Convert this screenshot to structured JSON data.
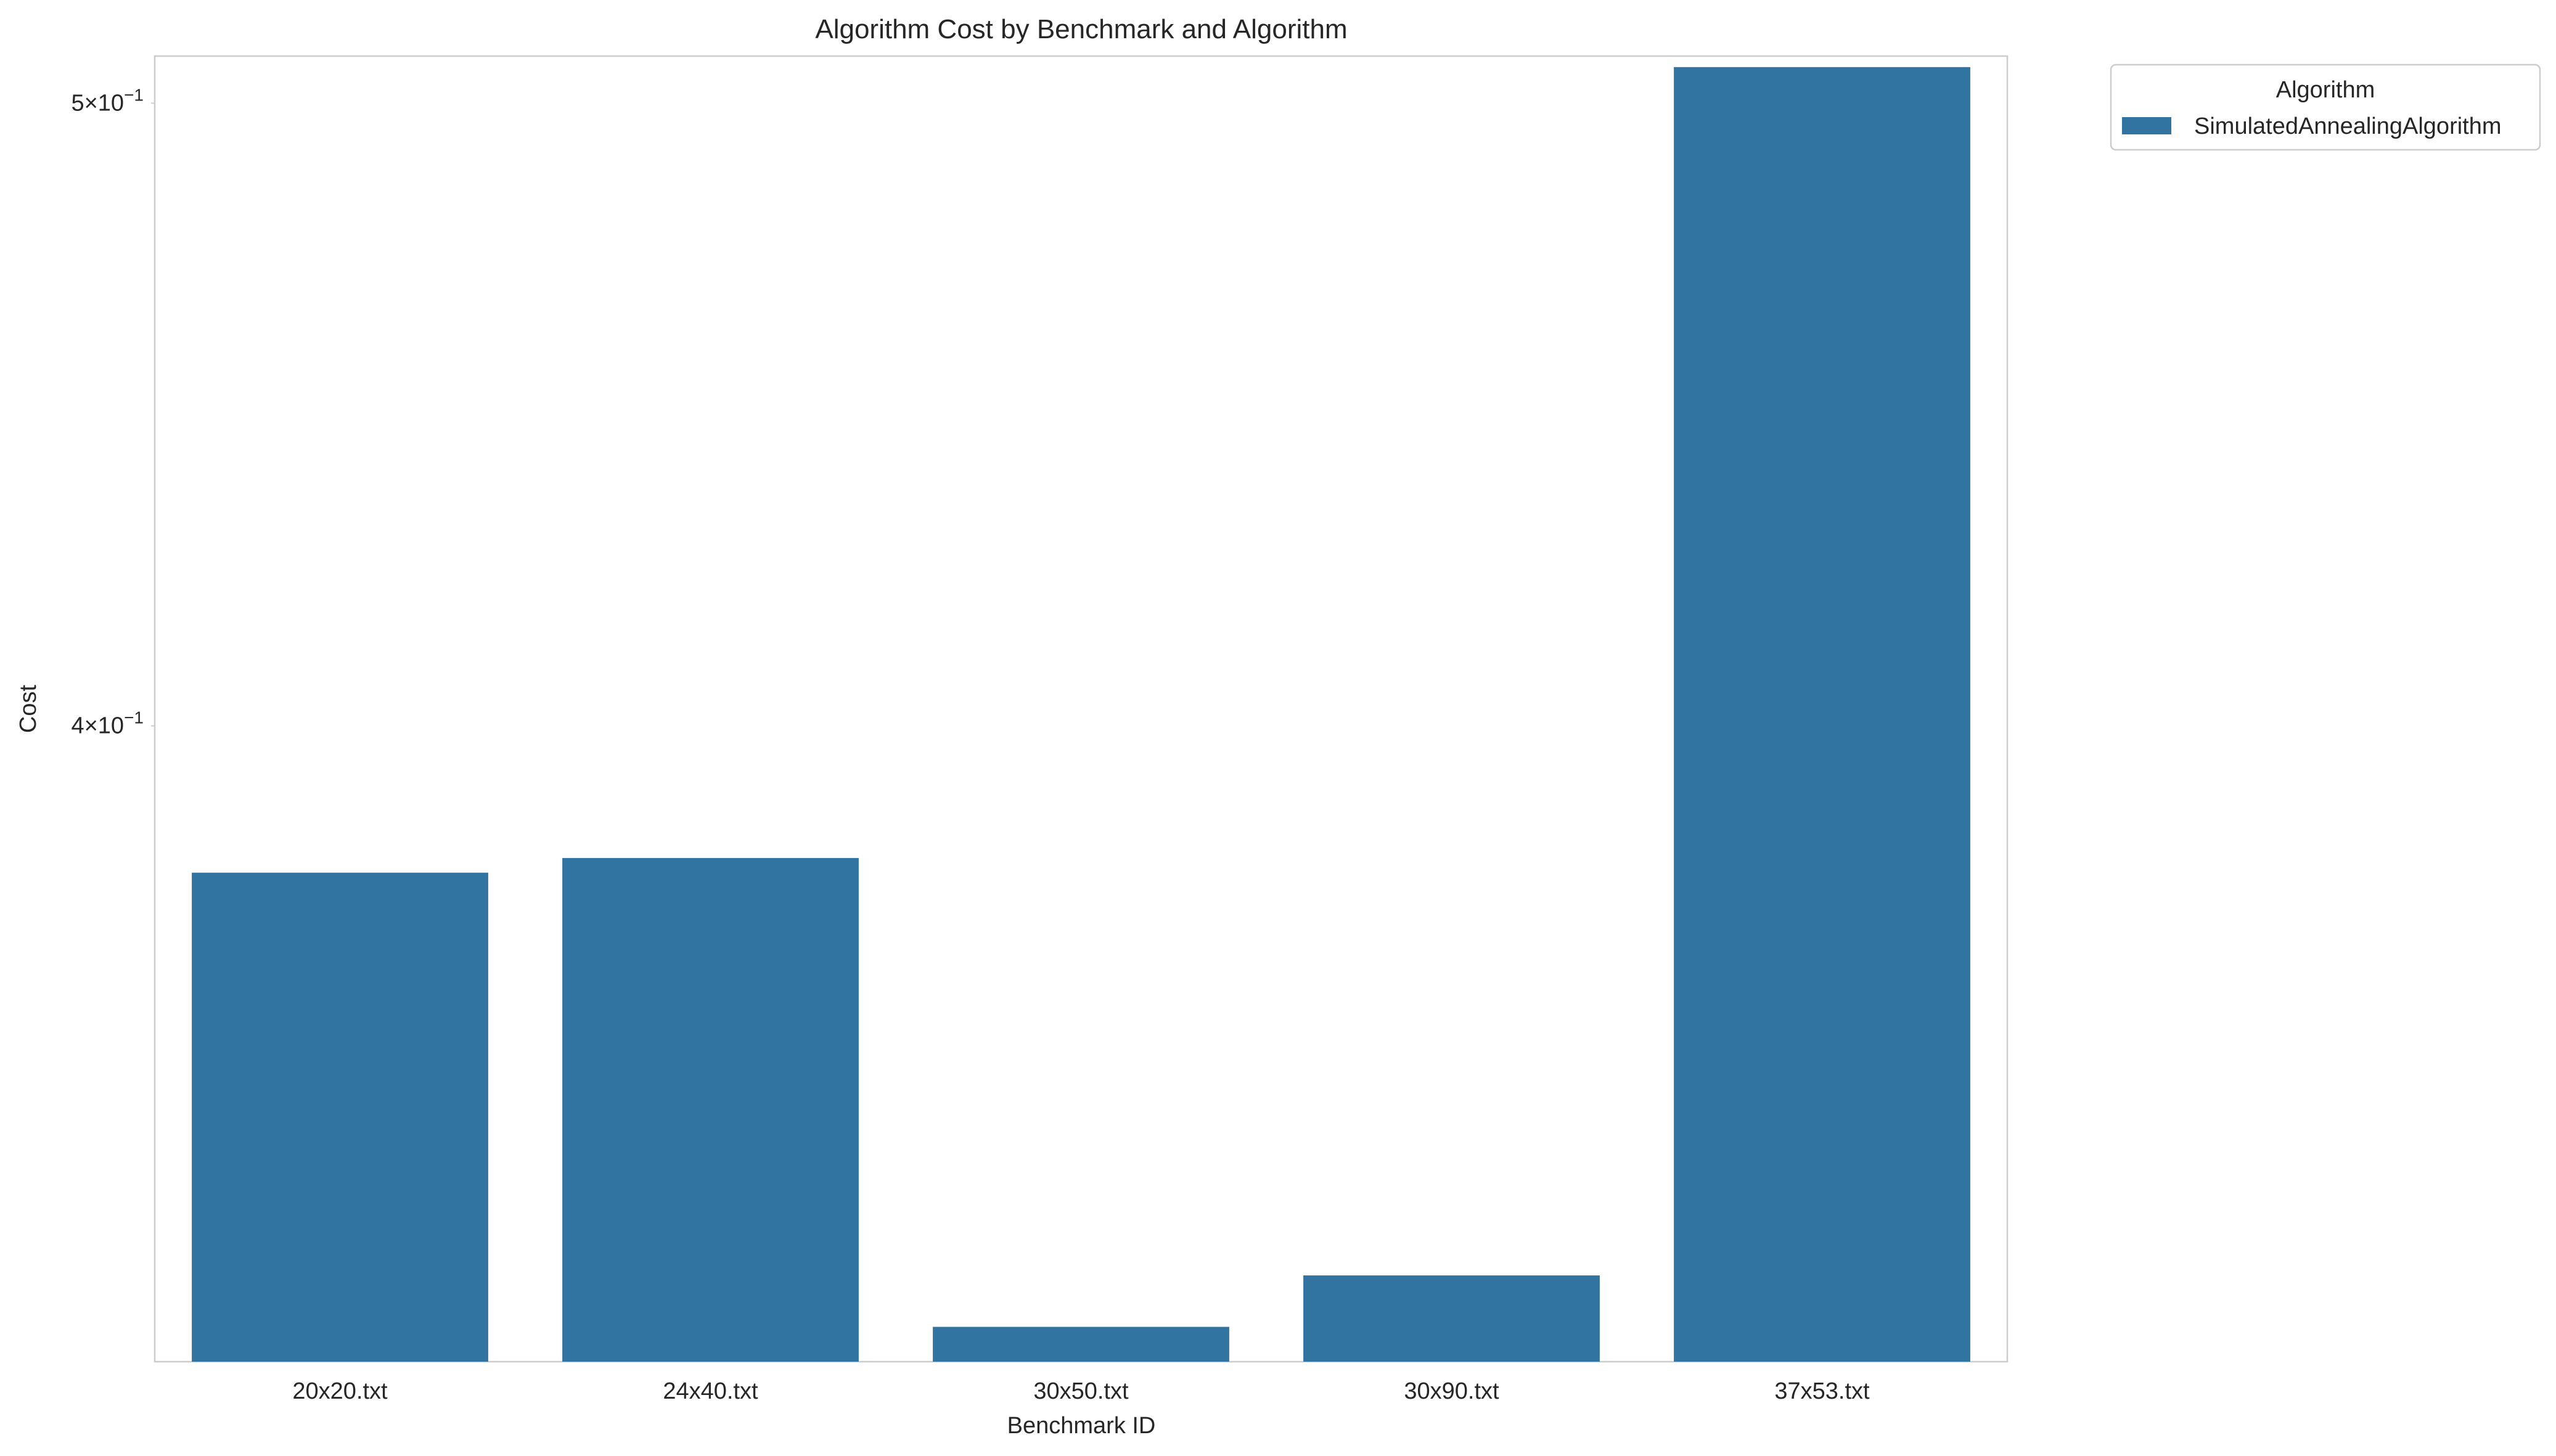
{
  "chart_data": {
    "type": "bar",
    "title": "Algorithm Cost by Benchmark and Algorithm",
    "xlabel": "Benchmark ID",
    "ylabel": "Cost",
    "yscale": "log",
    "ylim": [
      0.3185,
      0.5085
    ],
    "y_ticks": [
      {
        "value": 0.5,
        "base": "5",
        "exponent": "−1"
      },
      {
        "value": 0.4,
        "base": "4",
        "exponent": "−1"
      }
    ],
    "categories": [
      "20x20.txt",
      "24x40.txt",
      "30x50.txt",
      "30x90.txt",
      "37x53.txt"
    ],
    "series": [
      {
        "name": "SimulatedAnnealingAlgorithm",
        "values": [
          0.3795,
          0.3815,
          0.3225,
          0.3285,
          0.5065
        ]
      }
    ],
    "legend": {
      "title": "Algorithm",
      "placement": "outside-top-right"
    },
    "grid": false,
    "colors": {
      "bar": "#3274a1",
      "axes_edge": "#cccccc",
      "text": "#262626"
    }
  }
}
